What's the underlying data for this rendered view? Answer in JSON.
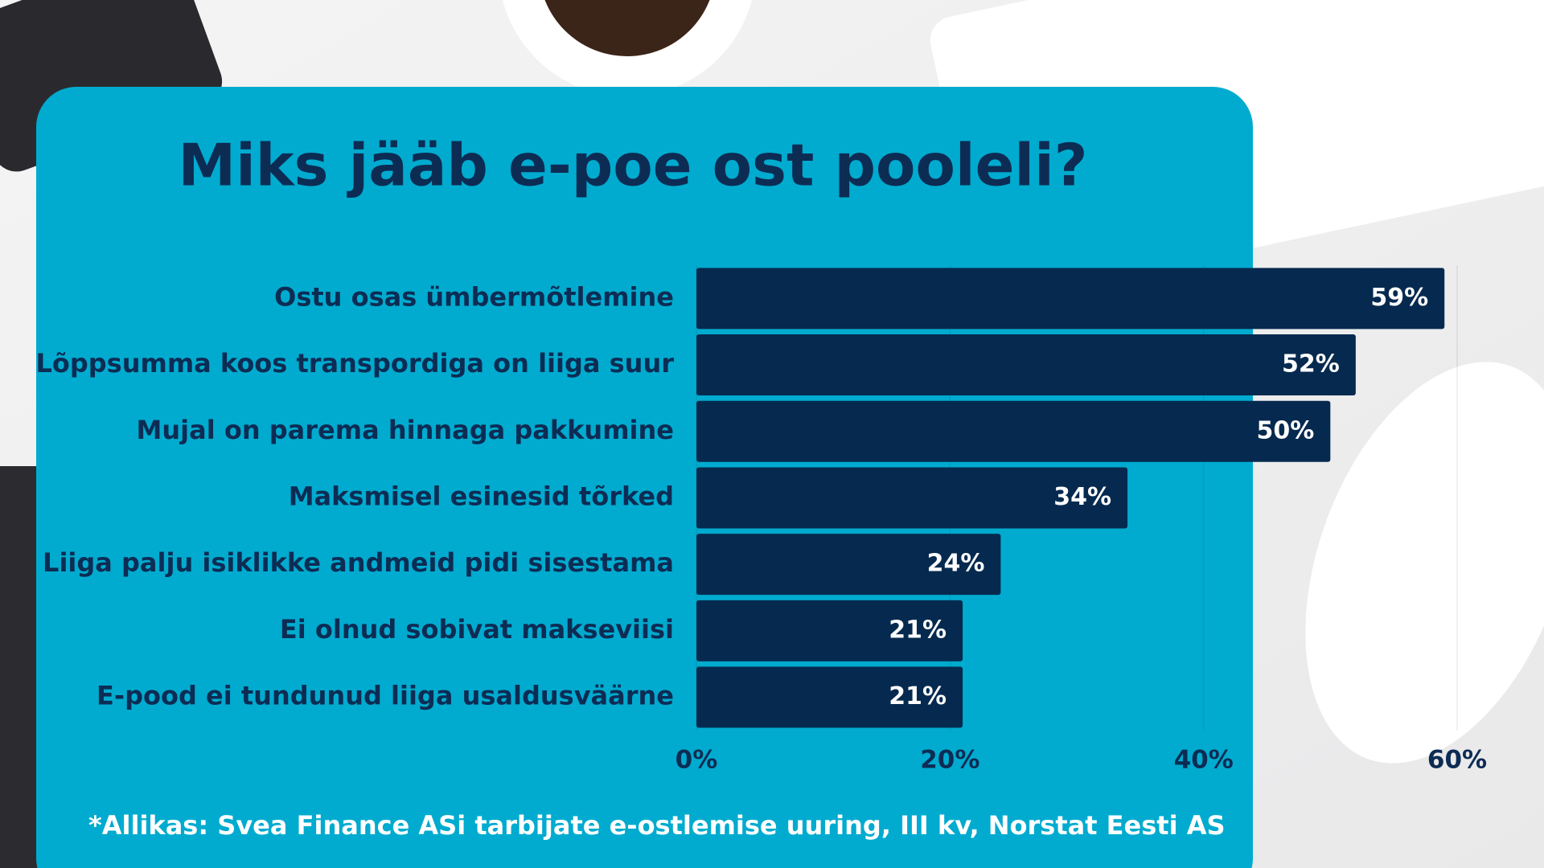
{
  "chart_data": {
    "type": "hbar",
    "title": "Miks jääb e-poe ost pooleli?",
    "categories": [
      "Ostu osas ümbermõtlemine",
      "Lõppsumma koos transpordiga on liiga suur",
      "Mujal on parema hinnaga pakkumine",
      "Maksmisel esinesid tõrked",
      "Liiga palju isiklikke andmeid pidi sisestama",
      "Ei olnud sobivat makseviisi",
      "E-pood ei tundunud liiga usaldusväärne"
    ],
    "values": [
      59,
      52,
      50,
      34,
      24,
      21,
      21
    ],
    "value_labels": [
      "59%",
      "52%",
      "50%",
      "34%",
      "24%",
      "21%",
      "21%"
    ],
    "color": "#062a4f",
    "xlim": [
      0,
      60
    ],
    "xticks": [
      {
        "value": 0,
        "label": "0%"
      },
      {
        "value": 20,
        "label": "20%"
      },
      {
        "value": 40,
        "label": "40%"
      },
      {
        "value": 60,
        "label": "60%"
      }
    ],
    "grid": true,
    "footnote": "*Allikas: Svea Finance ASi tarbijate e-ostlemise uuring, III kv, Norstat Eesti AS"
  }
}
